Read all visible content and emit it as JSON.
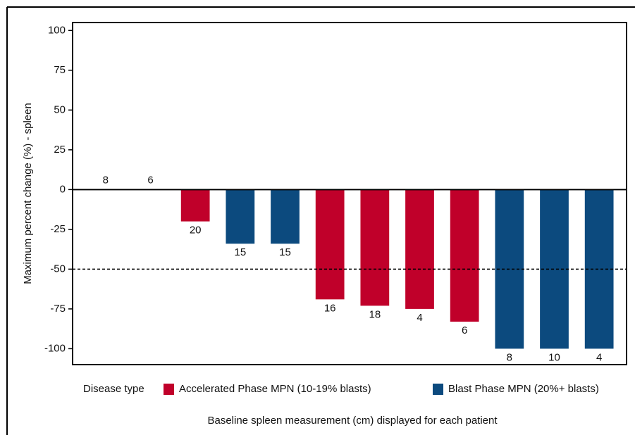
{
  "chart_data": {
    "type": "waterfall",
    "y_label": "Maximum percent change (%) - spleen",
    "x_label": "Baseline spleen measurement (cm) displayed for each patient",
    "categories": [
      null,
      null,
      null,
      null,
      null,
      null,
      null,
      null,
      null,
      null,
      null,
      null
    ],
    "values": [
      0,
      0,
      -20,
      -34,
      -34,
      -69,
      -73,
      -75,
      -83,
      -100,
      -100,
      -100
    ],
    "value_labels": [
      "8",
      "6",
      "20",
      "15",
      "15",
      "16",
      "18",
      "4",
      "6",
      "8",
      "10",
      "4"
    ],
    "group": [
      null,
      null,
      0,
      1,
      1,
      0,
      0,
      0,
      0,
      1,
      1,
      1
    ],
    "legend_title": "Disease type",
    "legend": [
      {
        "name": "Accelerated Phase MPN (10-19% blasts)",
        "color": "#c0002a"
      },
      {
        "name": "Blast Phase MPN (20%+ blasts)",
        "color": "#0c4a7e"
      }
    ],
    "reference_line": -50,
    "ylim": [
      -110,
      105
    ],
    "yticks": [
      -100,
      -75,
      -50,
      -25,
      0,
      25,
      50,
      75,
      100
    ]
  }
}
